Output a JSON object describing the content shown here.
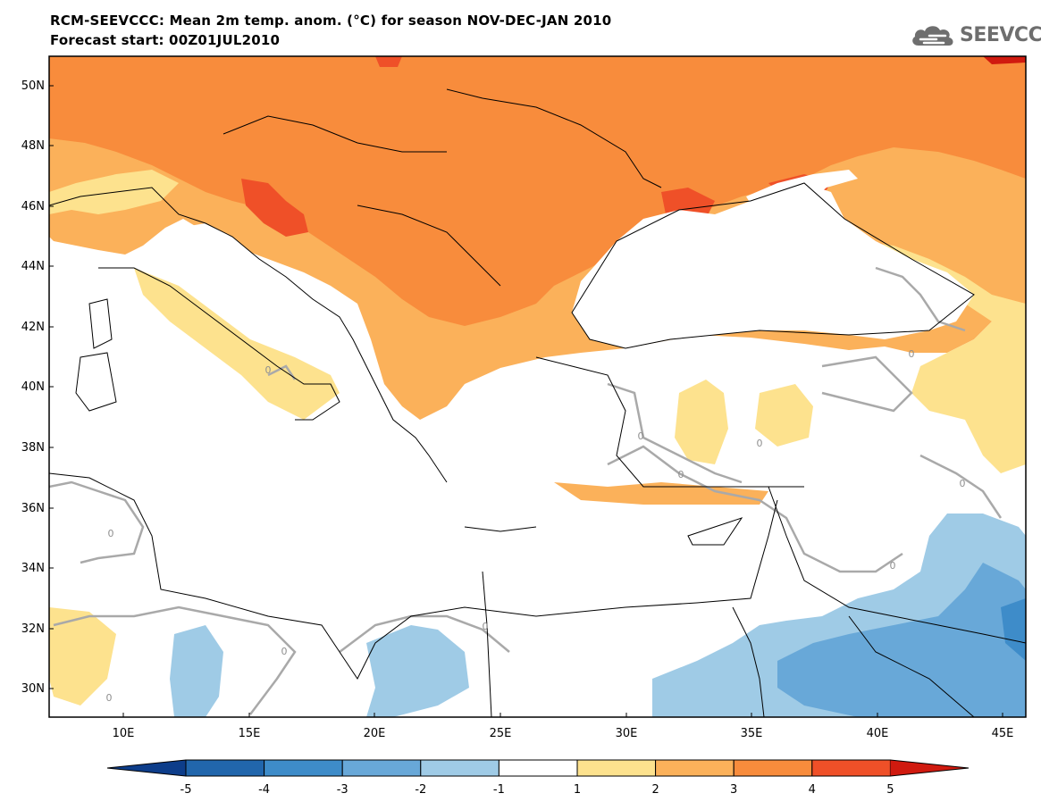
{
  "header": {
    "title": "RCM-SEEVCCC: Mean 2m temp. anom. (°C) for season NOV-DEC-JAN 2010",
    "subtitle": "Forecast start: 00Z01JUL2010"
  },
  "logo": {
    "text": "SEEVCCC",
    "icon": "cloud-icon"
  },
  "map": {
    "lat_labels": [
      "50N",
      "48N",
      "46N",
      "44N",
      "42N",
      "40N",
      "38N",
      "36N",
      "34N",
      "32N",
      "30N"
    ],
    "lon_labels": [
      "10E",
      "15E",
      "20E",
      "25E",
      "30E",
      "35E",
      "40E",
      "45E"
    ],
    "contour_labels": [
      "0",
      "0",
      "0",
      "0",
      "0",
      "0",
      "0",
      "0",
      "0",
      "0",
      "0"
    ]
  },
  "colorbar": {
    "labels": [
      "-5",
      "-4",
      "-3",
      "-2",
      "-1",
      "1",
      "2",
      "3",
      "4",
      "5"
    ],
    "colors": [
      "#2166ac",
      "#3e8cc9",
      "#68a8d8",
      "#9fcbe6",
      "#ffffff",
      "#fde28e",
      "#fbb15a",
      "#f88c3c",
      "#ef5028"
    ],
    "end_low_color": "#0d3d8a",
    "end_high_color": "#d01a0f"
  }
}
